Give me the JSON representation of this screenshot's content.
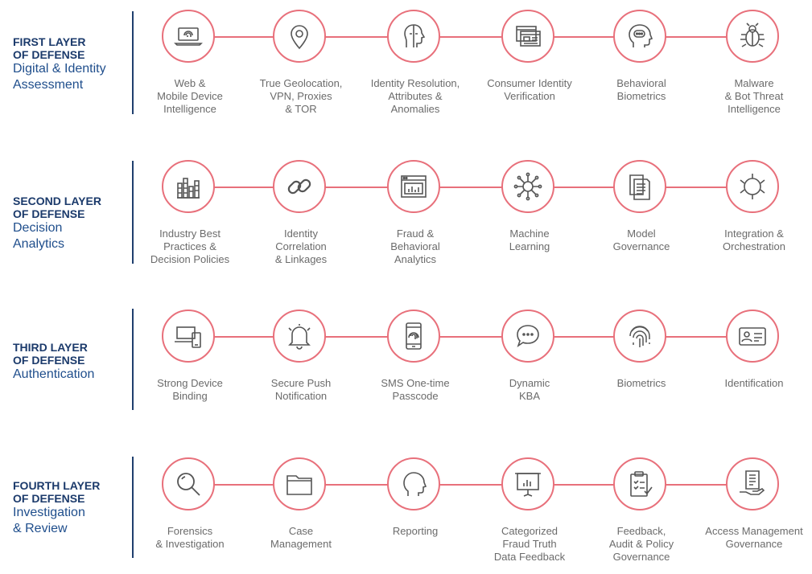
{
  "layers": [
    {
      "title": "FIRST LAYER\nOF DEFENSE",
      "subtitle": "Digital & Identity\nAssessment",
      "items": [
        {
          "icon": "laptop-fingerprint-icon",
          "label": "Web &\nMobile Device\nIntelligence"
        },
        {
          "icon": "map-pin-icon",
          "label": "True Geolocation,\nVPN, Proxies\n& TOR"
        },
        {
          "icon": "face-profile-icon",
          "label": "Identity Resolution,\nAttributes &\nAnomalies"
        },
        {
          "icon": "browser-windows-icon",
          "label": "Consumer Identity\nVerification"
        },
        {
          "icon": "head-thought-icon",
          "label": "Behavioral\nBiometrics"
        },
        {
          "icon": "bug-icon",
          "label": "Malware\n& Bot Threat\nIntelligence"
        }
      ]
    },
    {
      "title": "SECOND LAYER\nOF DEFENSE",
      "subtitle": "Decision\nAnalytics",
      "items": [
        {
          "icon": "stacked-bars-icon",
          "label": "Industry Best\nPractices &\nDecision Policies"
        },
        {
          "icon": "chain-link-icon",
          "label": "Identity\nCorrelation\n& Linkages"
        },
        {
          "icon": "browser-chart-icon",
          "label": "Fraud &\nBehavioral\nAnalytics"
        },
        {
          "icon": "network-node-icon",
          "label": "Machine\nLearning"
        },
        {
          "icon": "documents-icon",
          "label": "Model\nGovernance"
        },
        {
          "icon": "orbit-arrows-icon",
          "label": "Integration &\nOrchestration"
        }
      ]
    },
    {
      "title": "THIRD LAYER\nOF DEFENSE",
      "subtitle": "Authentication",
      "items": [
        {
          "icon": "laptop-phone-icon",
          "label": "Strong Device\nBinding"
        },
        {
          "icon": "bell-icon",
          "label": "Secure Push\nNotification"
        },
        {
          "icon": "phone-fingerprint-icon",
          "label": "SMS One-time\nPasscode"
        },
        {
          "icon": "chat-bubbles-icon",
          "label": "Dynamic\nKBA"
        },
        {
          "icon": "fingerprint-icon",
          "label": "Biometrics"
        },
        {
          "icon": "id-card-icon",
          "label": "Identification"
        }
      ]
    },
    {
      "title": "FOURTH LAYER\nOF DEFENSE",
      "subtitle": "Investigation\n& Review",
      "items": [
        {
          "icon": "magnifier-icon",
          "label": "Forensics\n& Investigation"
        },
        {
          "icon": "folder-icon",
          "label": "Case\nManagement"
        },
        {
          "icon": "head-outline-icon",
          "label": "Reporting"
        },
        {
          "icon": "presentation-chart-icon",
          "label": "Categorized\nFraud Truth\nData Feedback"
        },
        {
          "icon": "clipboard-check-icon",
          "label": "Feedback,\nAudit & Policy\nGovernance"
        },
        {
          "icon": "hand-document-icon",
          "label": "Access Management\nGovernance"
        }
      ]
    }
  ],
  "colors": {
    "accent": "#e8707b",
    "navy": "#1b3a6b",
    "label_gray": "#6b6b6b"
  }
}
